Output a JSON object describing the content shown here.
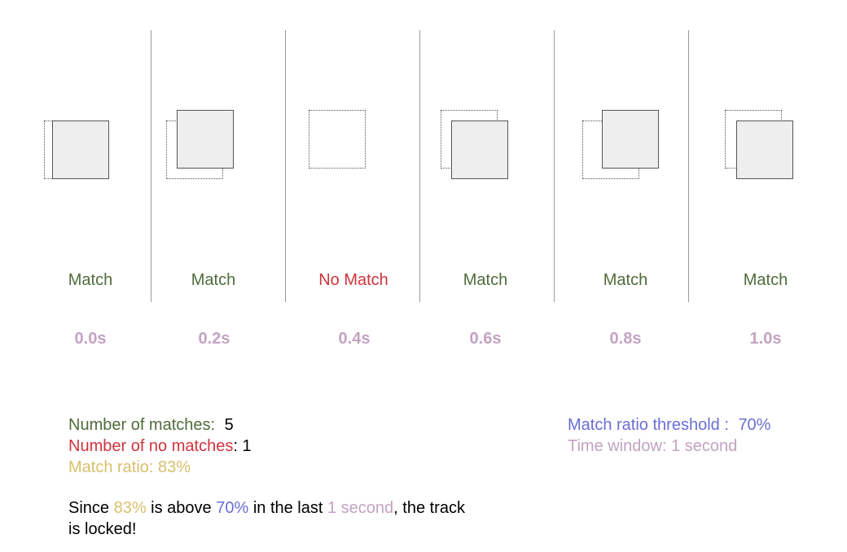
{
  "colors": {
    "match": "#4f6b3a",
    "no_match": "#d0343c",
    "ratio": "#d8c06c",
    "threshold": "#6a6fd4",
    "time": "#c3a3c2",
    "text": "#000000"
  },
  "frames": [
    {
      "status": "Match",
      "time": "0.0s",
      "matched": true
    },
    {
      "status": "Match",
      "time": "0.2s",
      "matched": true
    },
    {
      "status": "No Match",
      "time": "0.4s",
      "matched": false
    },
    {
      "status": "Match",
      "time": "0.6s",
      "matched": true
    },
    {
      "status": "Match",
      "time": "0.8s",
      "matched": true
    },
    {
      "status": "Match",
      "time": "1.0s",
      "matched": true
    }
  ],
  "stats": {
    "matches_label": "Number of matches:",
    "matches_value": "5",
    "no_matches_label": "Number of no matches",
    "no_matches_value": ": 1",
    "ratio_text": "Match ratio: 83%"
  },
  "params": {
    "threshold_label": "Match ratio threshold :",
    "threshold_value": "70%",
    "time_window_text": "Time window: 1 second"
  },
  "conclusion": {
    "part1": "Since ",
    "ratio": "83%",
    "part2": " is above ",
    "threshold": "70%",
    "part3": " in the last ",
    "window": "1 second",
    "part4": ", the track is locked!"
  }
}
